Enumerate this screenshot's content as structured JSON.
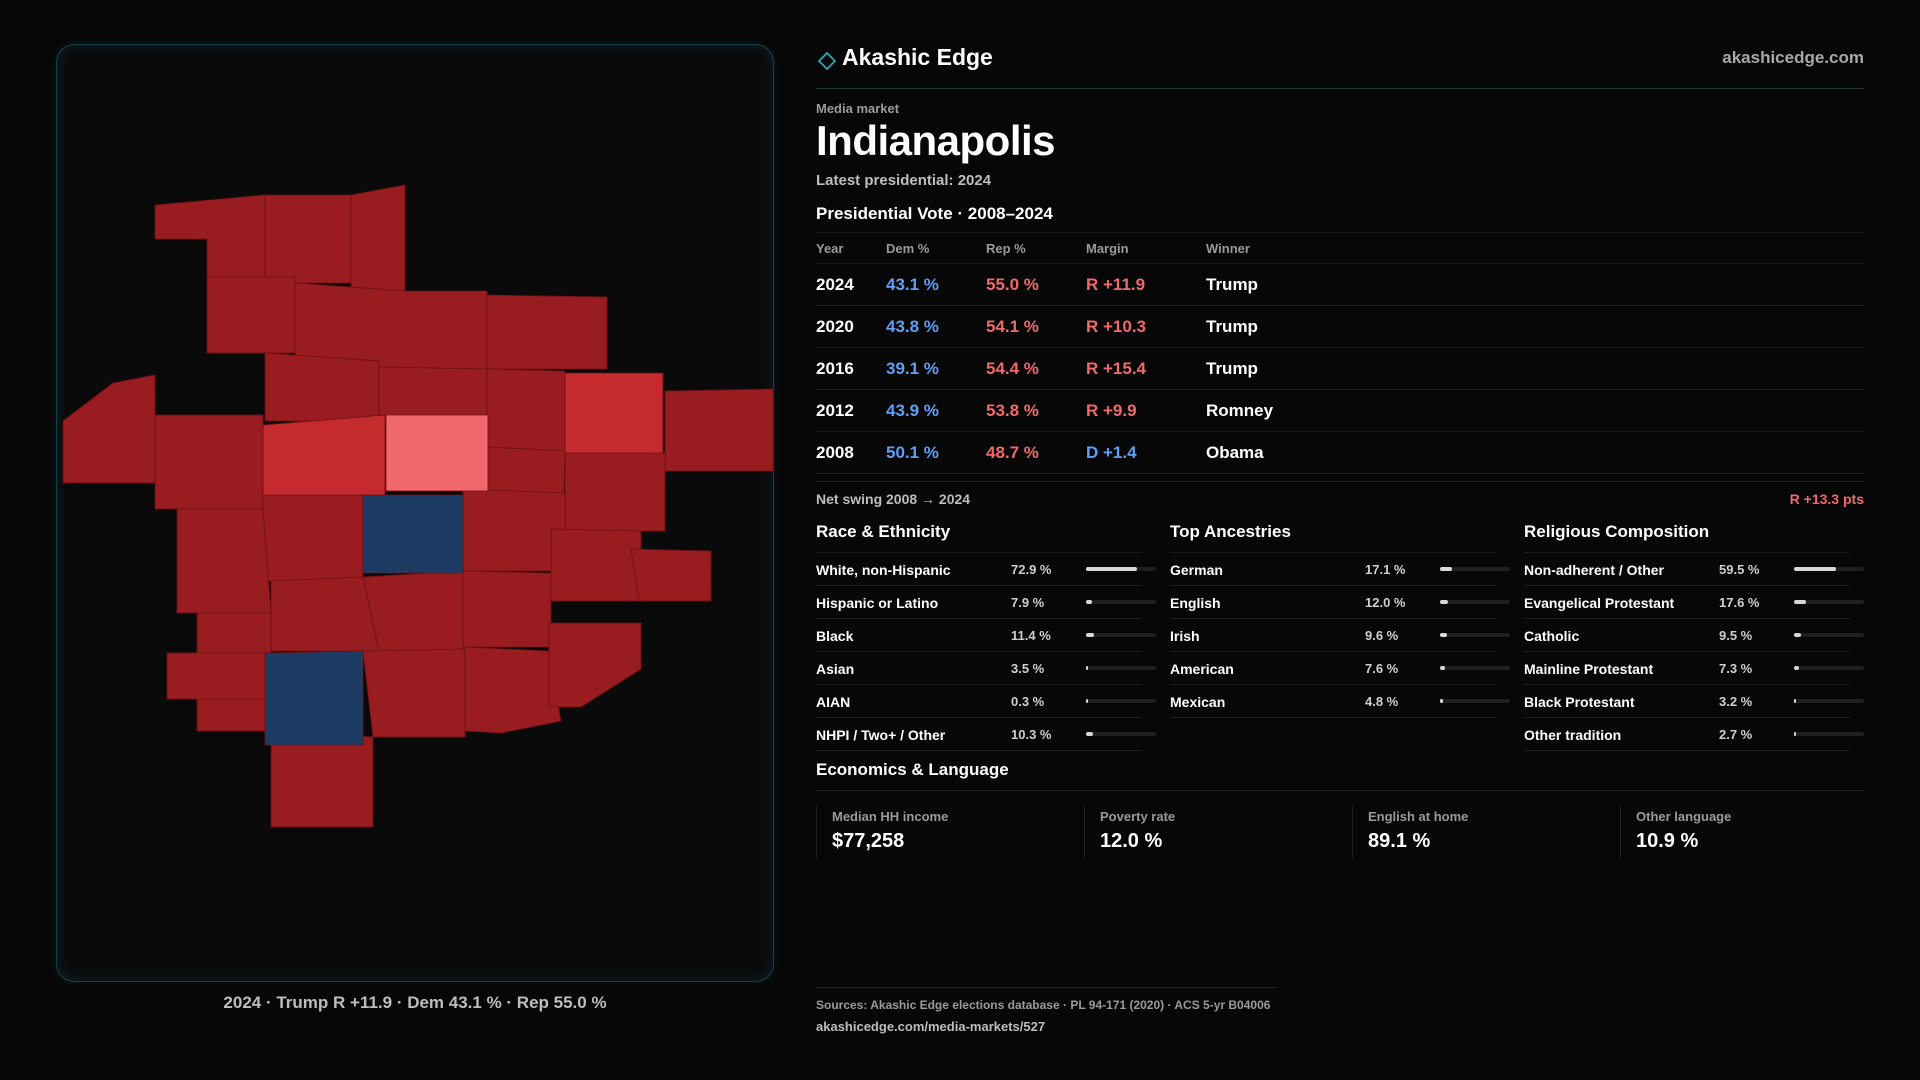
{
  "map": {
    "caption": "2024 · Trump R +11.9 · Dem 43.1 % · Rep 55.0 %",
    "colors": {
      "strong_rep": "#981c20",
      "mid_rep": "#c42a2e",
      "light_rep": "#f0686b",
      "dem": "#1d3c63"
    }
  },
  "brand": {
    "name": "Akashic Edge",
    "url": "akashicedge.com",
    "icon": "diamond-icon"
  },
  "market": {
    "eyebrow": "Media market",
    "name": "Indianapolis",
    "latest": "Latest presidential: 2024"
  },
  "vote": {
    "title": "Presidential Vote · 2008–2024",
    "headers": {
      "year": "Year",
      "dem": "Dem %",
      "rep": "Rep %",
      "margin": "Margin",
      "winner": "Winner"
    },
    "rows": [
      {
        "year": "2024",
        "dem": "43.1 %",
        "rep": "55.0 %",
        "margin": "R +11.9",
        "party": "R",
        "winner": "Trump"
      },
      {
        "year": "2020",
        "dem": "43.8 %",
        "rep": "54.1 %",
        "margin": "R +10.3",
        "party": "R",
        "winner": "Trump"
      },
      {
        "year": "2016",
        "dem": "39.1 %",
        "rep": "54.4 %",
        "margin": "R +15.4",
        "party": "R",
        "winner": "Trump"
      },
      {
        "year": "2012",
        "dem": "43.9 %",
        "rep": "53.8 %",
        "margin": "R +9.9",
        "party": "R",
        "winner": "Romney"
      },
      {
        "year": "2008",
        "dem": "50.1 %",
        "rep": "48.7 %",
        "margin": "D +1.4",
        "party": "D",
        "winner": "Obama"
      }
    ],
    "swing_label": "Net swing 2008 → 2024",
    "swing_value": "R +13.3 pts"
  },
  "race": {
    "title": "Race & Ethnicity",
    "rows": [
      {
        "label": "White, non-Hispanic",
        "value": "72.9 %",
        "pct": 72.9
      },
      {
        "label": "Hispanic or Latino",
        "value": "7.9 %",
        "pct": 7.9
      },
      {
        "label": "Black",
        "value": "11.4 %",
        "pct": 11.4
      },
      {
        "label": "Asian",
        "value": "3.5 %",
        "pct": 3.5
      },
      {
        "label": "AIAN",
        "value": "0.3 %",
        "pct": 0.3
      },
      {
        "label": "NHPI / Two+ / Other",
        "value": "10.3 %",
        "pct": 10.3
      }
    ]
  },
  "ancestry": {
    "title": "Top Ancestries",
    "rows": [
      {
        "label": "German",
        "value": "17.1 %",
        "pct": 17.1
      },
      {
        "label": "English",
        "value": "12.0 %",
        "pct": 12.0
      },
      {
        "label": "Irish",
        "value": "9.6 %",
        "pct": 9.6
      },
      {
        "label": "American",
        "value": "7.6 %",
        "pct": 7.6
      },
      {
        "label": "Mexican",
        "value": "4.8 %",
        "pct": 4.8
      }
    ]
  },
  "religion": {
    "title": "Religious Composition",
    "rows": [
      {
        "label": "Non-adherent / Other",
        "value": "59.5 %",
        "pct": 59.5
      },
      {
        "label": "Evangelical Protestant",
        "value": "17.6 %",
        "pct": 17.6
      },
      {
        "label": "Catholic",
        "value": "9.5 %",
        "pct": 9.5
      },
      {
        "label": "Mainline Protestant",
        "value": "7.3 %",
        "pct": 7.3
      },
      {
        "label": "Black Protestant",
        "value": "3.2 %",
        "pct": 3.2
      },
      {
        "label": "Other tradition",
        "value": "2.7 %",
        "pct": 2.7
      }
    ]
  },
  "economics": {
    "title": "Economics & Language",
    "cards": [
      {
        "label": "Median HH income",
        "value": "$77,258"
      },
      {
        "label": "Poverty rate",
        "value": "12.0 %"
      },
      {
        "label": "English at home",
        "value": "89.1 %"
      },
      {
        "label": "Other language",
        "value": "10.9 %"
      }
    ]
  },
  "sources": {
    "line": "Sources: Akashic Edge elections database · PL 94-171 (2020) · ACS 5-yr B04006",
    "url": "akashicedge.com/media-markets/527"
  },
  "colors": {
    "dem": "#5f9ff5",
    "rep": "#f06a6a",
    "accent": "#2bb3c0"
  }
}
